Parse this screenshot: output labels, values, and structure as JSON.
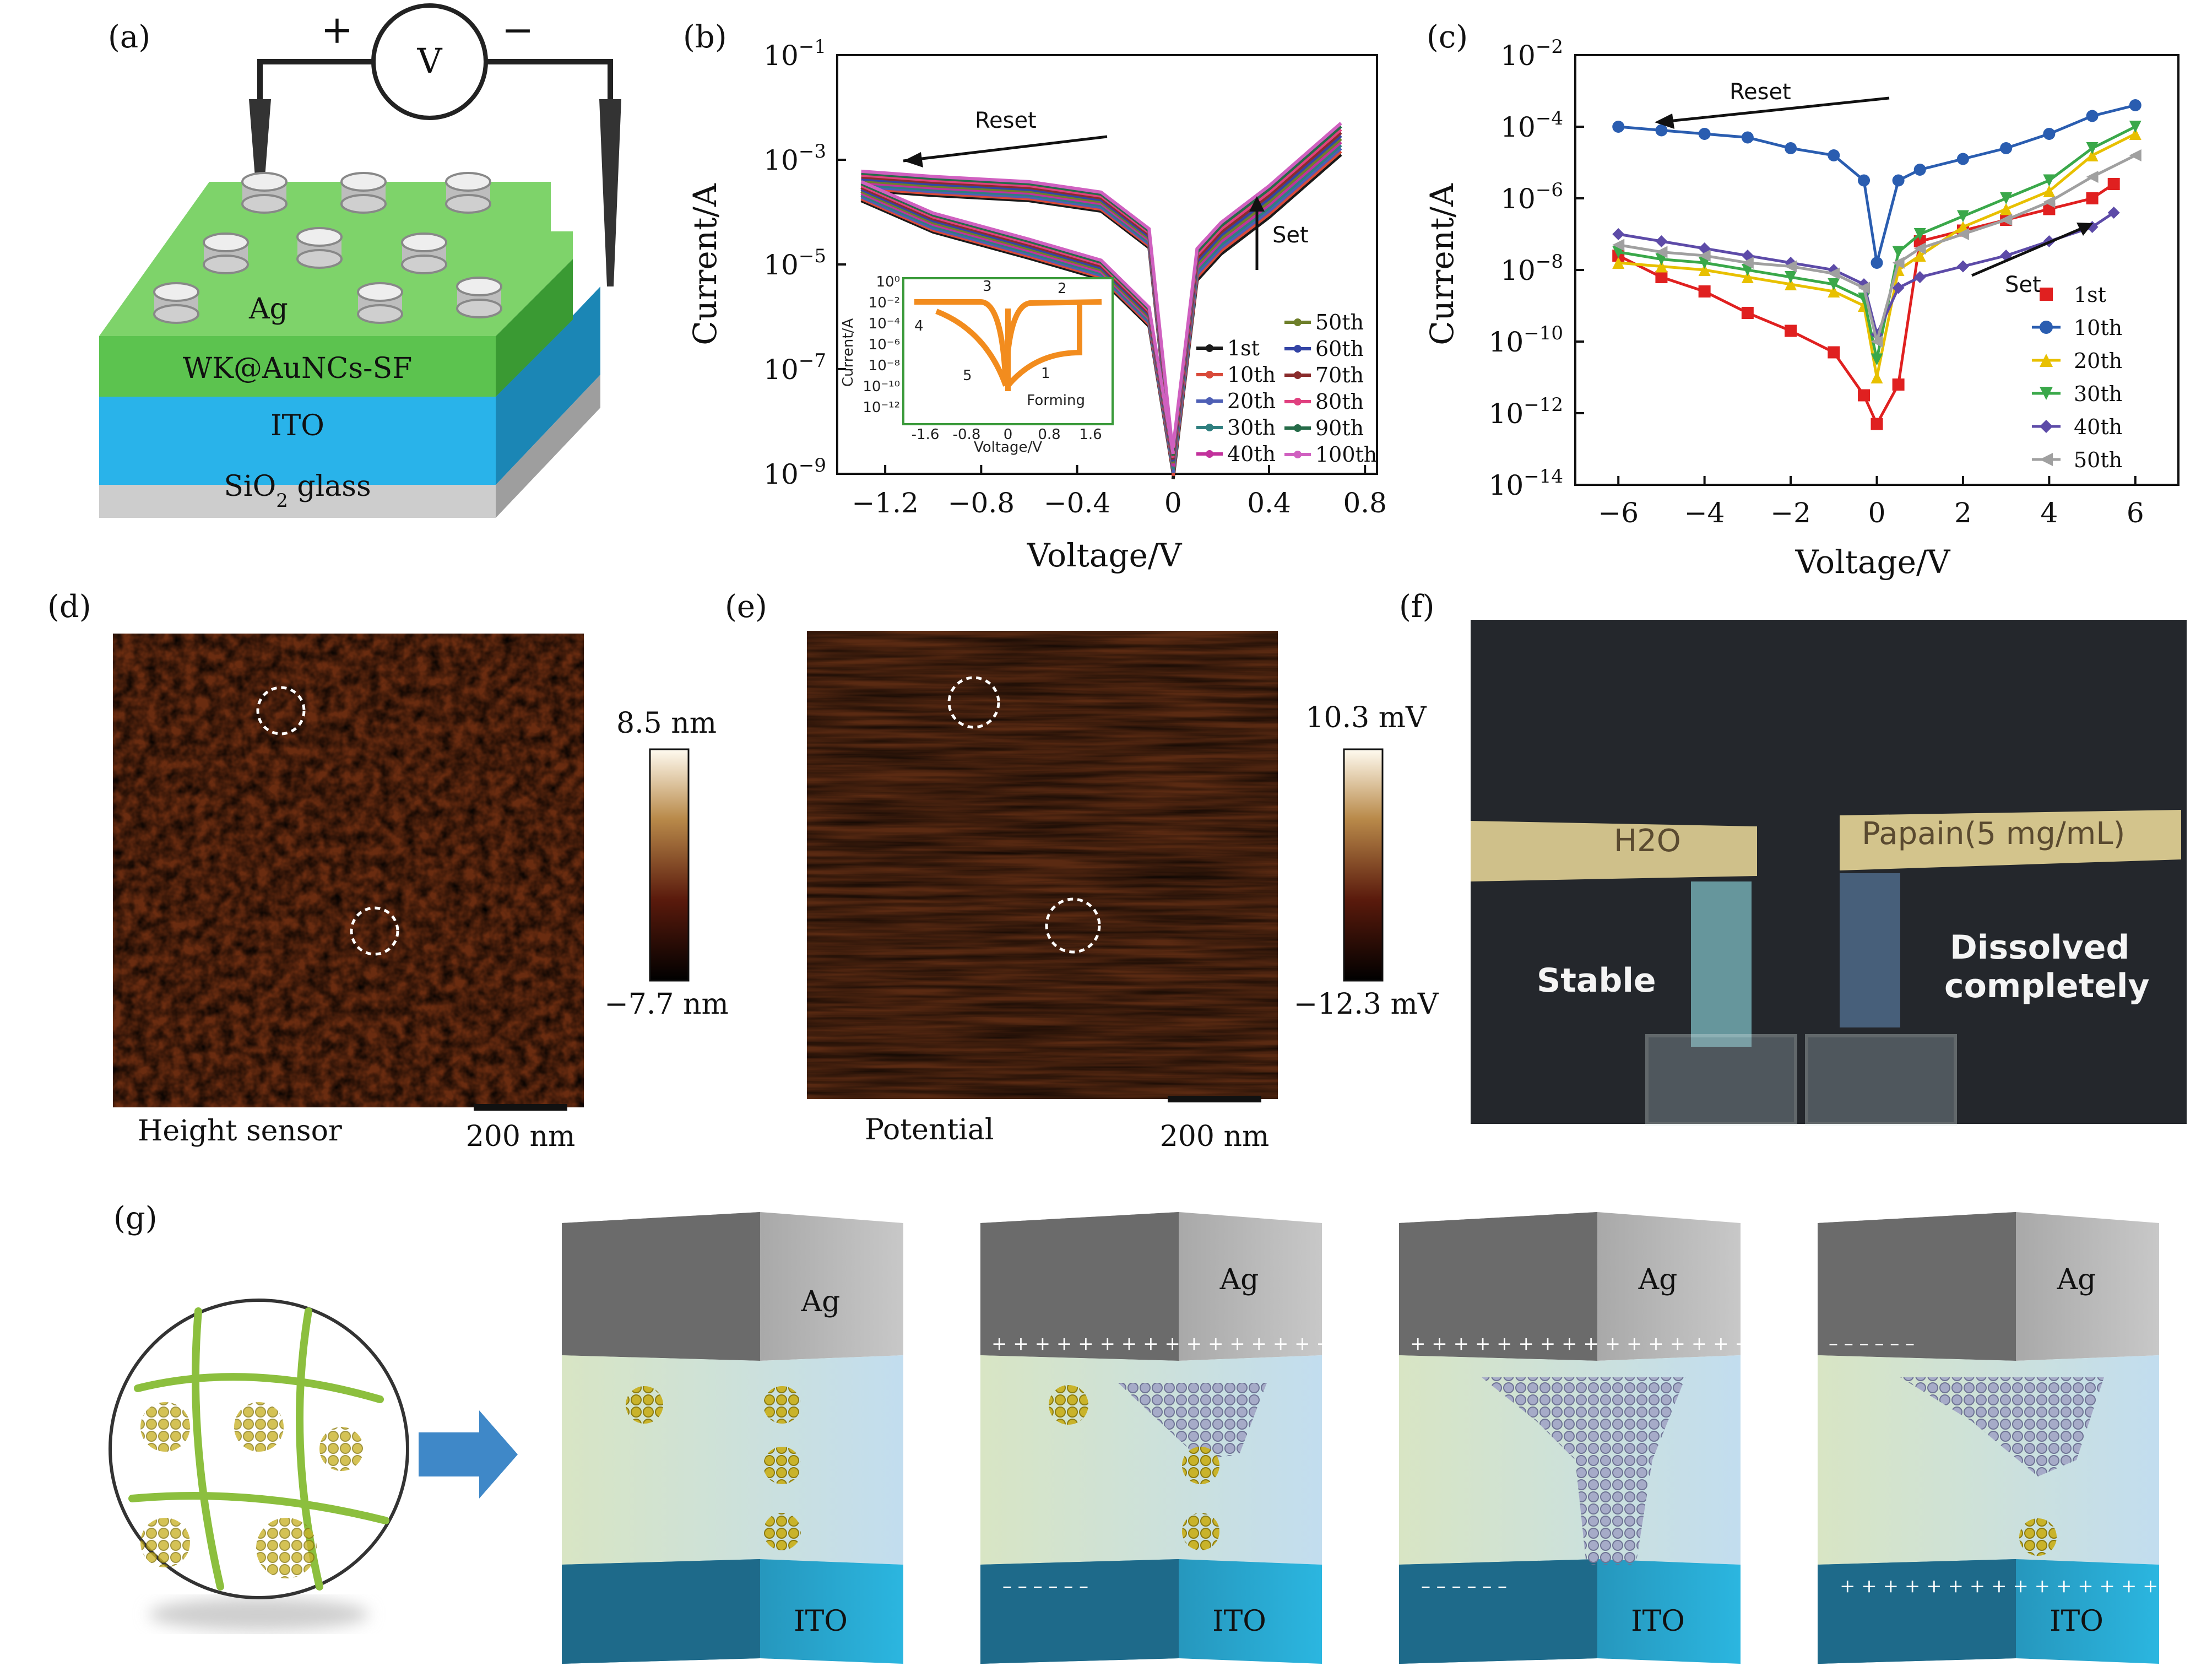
{
  "panels": {
    "a": {
      "label": "(a)",
      "voltmeter": "V",
      "plus": "+",
      "minus": "−",
      "electrode": "Ag",
      "layer_top": "WK@AuNCs-SF",
      "layer_mid": "ITO",
      "layer_bottom": "SiO",
      "layer_bottom_sub": "2",
      "layer_bottom_rest": " glass"
    },
    "b": {
      "label": "(b)",
      "reset": "Reset",
      "set": "Set",
      "inset_forming": "Forming",
      "inset_xlabel": "Voltage/V",
      "inset_ylabel": "Current/A",
      "inset_xticks": [
        "-1.6",
        "-0.8",
        "0",
        "0.8",
        "1.6"
      ],
      "inset_yticks": [
        "10⁰",
        "10⁻²",
        "10⁻⁴",
        "10⁻⁶",
        "10⁻⁸",
        "10⁻¹⁰",
        "10⁻¹²"
      ],
      "inset_arrows": [
        "1",
        "2",
        "3",
        "4",
        "5"
      ]
    },
    "c": {
      "label": "(c)",
      "reset": "Reset",
      "set": "Set"
    },
    "d": {
      "label": "(d)",
      "caption": "Height sensor",
      "scale": "200 nm",
      "cbar_max": "8.5 nm",
      "cbar_min": "−7.7 nm"
    },
    "e": {
      "label": "(e)",
      "caption": "Potential",
      "scale": "200 nm",
      "cbar_max": "10.3 mV",
      "cbar_min": "−12.3 mV"
    },
    "f": {
      "label": "(f)",
      "left_tag": "H2O",
      "right_tag": "Papain(5 mg/mL)",
      "left_state": "Stable",
      "right_state_1": "Dissolved",
      "right_state_2": "completely"
    },
    "g": {
      "label": "(g)",
      "top": "Ag",
      "bottom": "ITO"
    }
  },
  "chart_data": [
    {
      "panel": "b",
      "type": "line",
      "xlabel": "Voltage/V",
      "ylabel": "Current/A",
      "xlim": [
        -1.4,
        0.85
      ],
      "ylim_log10": [
        -9,
        -1
      ],
      "xticks": [
        "−1.2",
        "−0.8",
        "−0.4",
        "0",
        "0.4",
        "0.8"
      ],
      "xtick_values": [
        -1.2,
        -0.8,
        -0.4,
        0,
        0.4,
        0.8
      ],
      "yticks": [
        {
          "base": "10",
          "exp": "−1",
          "value": -1
        },
        {
          "base": "10",
          "exp": "−3",
          "value": -3
        },
        {
          "base": "10",
          "exp": "−5",
          "value": -5
        },
        {
          "base": "10",
          "exp": "−7",
          "value": -7
        },
        {
          "base": "10",
          "exp": "−9",
          "value": -9
        }
      ],
      "legend": [
        {
          "name": "1st",
          "color": "#1a1a1a"
        },
        {
          "name": "10th",
          "color": "#d94a3a"
        },
        {
          "name": "20th",
          "color": "#4e5fb5"
        },
        {
          "name": "30th",
          "color": "#2f7f7f"
        },
        {
          "name": "40th",
          "color": "#c2319c"
        },
        {
          "name": "50th",
          "color": "#6e7f2a"
        },
        {
          "name": "60th",
          "color": "#3344a5"
        },
        {
          "name": "70th",
          "color": "#8a2c2c"
        },
        {
          "name": "80th",
          "color": "#e0407f"
        },
        {
          "name": "90th",
          "color": "#256b48"
        },
        {
          "name": "100th",
          "color": "#d060c0"
        }
      ],
      "series_summary": {
        "reset_branch": {
          "x": [
            -1.3,
            -1.0,
            -0.6,
            -0.3,
            -0.1,
            0
          ],
          "y_log10": [
            -3.4,
            -3.5,
            -3.6,
            -3.8,
            -4.5,
            -8.8
          ]
        },
        "hrs_branch": {
          "x": [
            -1.3,
            -1.0,
            -0.6,
            -0.3,
            -0.1,
            0
          ],
          "y_log10": [
            -3.6,
            -4.2,
            -4.7,
            -5.1,
            -6.0,
            -8.8
          ]
        },
        "set_branch": {
          "x": [
            0,
            0.1,
            0.2,
            0.4,
            0.6,
            0.7
          ],
          "y_log10": [
            -8.8,
            -5.0,
            -4.5,
            -3.8,
            -3.0,
            -2.6
          ]
        }
      }
    },
    {
      "panel": "c",
      "type": "scatter",
      "xlabel": "Voltage/V",
      "ylabel": "Current/A",
      "xlim": [
        -7,
        7
      ],
      "ylim_log10": [
        -14,
        -2
      ],
      "xticks": [
        "−6",
        "−4",
        "−2",
        "0",
        "2",
        "4",
        "6"
      ],
      "xtick_values": [
        -6,
        -4,
        -2,
        0,
        2,
        4,
        6
      ],
      "yticks": [
        {
          "base": "10",
          "exp": "−2",
          "value": -2
        },
        {
          "base": "10",
          "exp": "−4",
          "value": -4
        },
        {
          "base": "10",
          "exp": "−6",
          "value": -6
        },
        {
          "base": "10",
          "exp": "−8",
          "value": -8
        },
        {
          "base": "10",
          "exp": "−10",
          "value": -10
        },
        {
          "base": "10",
          "exp": "−12",
          "value": -12
        },
        {
          "base": "10",
          "exp": "−14",
          "value": -14
        }
      ],
      "legend": [
        {
          "name": "1st",
          "color": "#e02020",
          "marker": "square"
        },
        {
          "name": "10th",
          "color": "#2a5db0",
          "marker": "circle"
        },
        {
          "name": "20th",
          "color": "#e8c000",
          "marker": "triangle-up"
        },
        {
          "name": "30th",
          "color": "#3aa84a",
          "marker": "triangle-down"
        },
        {
          "name": "40th",
          "color": "#5d4ba8",
          "marker": "diamond"
        },
        {
          "name": "50th",
          "color": "#a0a0a0",
          "marker": "triangle-left"
        }
      ],
      "series": [
        {
          "name": "1st",
          "x": [
            -6,
            -5,
            -4,
            -3,
            -2,
            -1,
            -0.3,
            0,
            0.5,
            1,
            2,
            3,
            4,
            5,
            5.5
          ],
          "y_log10": [
            -7.6,
            -8.2,
            -8.6,
            -9.2,
            -9.7,
            -10.3,
            -11.5,
            -12.3,
            -11.2,
            -7.2,
            -6.9,
            -6.6,
            -6.3,
            -6.0,
            -5.6
          ]
        },
        {
          "name": "10th",
          "x": [
            -6,
            -5,
            -4,
            -3,
            -2,
            -1,
            -0.3,
            0,
            0.5,
            1,
            2,
            3,
            4,
            5,
            6
          ],
          "y_log10": [
            -4.0,
            -4.1,
            -4.2,
            -4.3,
            -4.6,
            -4.8,
            -5.5,
            -7.8,
            -5.5,
            -5.2,
            -4.9,
            -4.6,
            -4.2,
            -3.7,
            -3.4
          ]
        },
        {
          "name": "20th",
          "x": [
            -6,
            -5,
            -4,
            -3,
            -2,
            -1,
            -0.3,
            0,
            0.5,
            1,
            2,
            3,
            4,
            5,
            6
          ],
          "y_log10": [
            -7.8,
            -7.9,
            -8.0,
            -8.2,
            -8.4,
            -8.6,
            -9.0,
            -11.0,
            -8.0,
            -7.6,
            -6.8,
            -6.3,
            -5.8,
            -4.8,
            -4.2
          ]
        },
        {
          "name": "30th",
          "x": [
            -6,
            -5,
            -4,
            -3,
            -2,
            -1,
            -0.3,
            0,
            0.5,
            1,
            2,
            3,
            4,
            5,
            6
          ],
          "y_log10": [
            -7.5,
            -7.7,
            -7.8,
            -8.0,
            -8.2,
            -8.4,
            -8.8,
            -10.5,
            -7.5,
            -7.0,
            -6.5,
            -6.0,
            -5.5,
            -4.6,
            -4.0
          ]
        },
        {
          "name": "40th",
          "x": [
            -6,
            -5,
            -4,
            -3,
            -2,
            -1,
            -0.3,
            0,
            0.5,
            1,
            2,
            3,
            4,
            5,
            5.5
          ],
          "y_log10": [
            -7.0,
            -7.2,
            -7.4,
            -7.6,
            -7.8,
            -8.0,
            -8.4,
            -9.8,
            -8.5,
            -8.2,
            -7.9,
            -7.6,
            -7.2,
            -6.8,
            -6.4
          ]
        },
        {
          "name": "50th",
          "x": [
            -6,
            -5,
            -4,
            -3,
            -2,
            -1,
            -0.3,
            0,
            0.5,
            1,
            2,
            3,
            4,
            5,
            6
          ],
          "y_log10": [
            -7.3,
            -7.5,
            -7.6,
            -7.8,
            -7.9,
            -8.1,
            -8.5,
            -10.0,
            -7.8,
            -7.4,
            -7.0,
            -6.6,
            -6.1,
            -5.4,
            -4.8
          ]
        }
      ]
    }
  ]
}
